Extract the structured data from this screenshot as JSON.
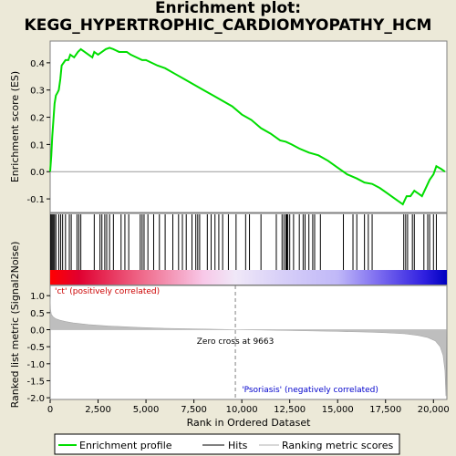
{
  "title_line1": "Enrichment plot:",
  "title_line2": "KEGG_HYPERTROPHIC_CARDIOMYOPATHY_HCM",
  "colors": {
    "background": "#ECE9D8",
    "es_line": "#00DD00",
    "hits": "#000000",
    "metric_fill": "#BEBEBE",
    "zero_cross_line": "#808080",
    "pos_label": "#CC0000",
    "neg_label": "#0000CC"
  },
  "chart_data": [
    {
      "type": "line",
      "name": "enrichment-profile",
      "ylabel": "Enrichment score (ES)",
      "ylim": [
        -0.15,
        0.48
      ],
      "yticks": [
        -0.1,
        0.0,
        0.1,
        0.2,
        0.3,
        0.4
      ],
      "ytick_labels": [
        "-0.1",
        "0.0",
        "0.1",
        "0.2",
        "0.3",
        "0.4"
      ],
      "xlim": [
        0,
        20700
      ],
      "points": [
        [
          0,
          0.0
        ],
        [
          60,
          0.06
        ],
        [
          110,
          0.13
        ],
        [
          170,
          0.19
        ],
        [
          230,
          0.25
        ],
        [
          300,
          0.28
        ],
        [
          380,
          0.29
        ],
        [
          450,
          0.3
        ],
        [
          530,
          0.34
        ],
        [
          600,
          0.39
        ],
        [
          700,
          0.4
        ],
        [
          800,
          0.41
        ],
        [
          950,
          0.41
        ],
        [
          1050,
          0.43
        ],
        [
          1250,
          0.42
        ],
        [
          1450,
          0.44
        ],
        [
          1600,
          0.45
        ],
        [
          1800,
          0.44
        ],
        [
          2000,
          0.43
        ],
        [
          2200,
          0.42
        ],
        [
          2300,
          0.44
        ],
        [
          2500,
          0.43
        ],
        [
          2700,
          0.44
        ],
        [
          2900,
          0.45
        ],
        [
          3100,
          0.455
        ],
        [
          3300,
          0.45
        ],
        [
          3600,
          0.44
        ],
        [
          3800,
          0.44
        ],
        [
          4000,
          0.44
        ],
        [
          4200,
          0.43
        ],
        [
          4500,
          0.42
        ],
        [
          4800,
          0.41
        ],
        [
          5000,
          0.41
        ],
        [
          5300,
          0.4
        ],
        [
          5600,
          0.39
        ],
        [
          6000,
          0.38
        ],
        [
          6500,
          0.36
        ],
        [
          7000,
          0.34
        ],
        [
          7500,
          0.32
        ],
        [
          8000,
          0.3
        ],
        [
          8500,
          0.28
        ],
        [
          9000,
          0.26
        ],
        [
          9500,
          0.24
        ],
        [
          10000,
          0.21
        ],
        [
          10500,
          0.19
        ],
        [
          11000,
          0.16
        ],
        [
          11500,
          0.14
        ],
        [
          12000,
          0.115
        ],
        [
          12300,
          0.11
        ],
        [
          12600,
          0.1
        ],
        [
          13000,
          0.085
        ],
        [
          13500,
          0.07
        ],
        [
          14000,
          0.06
        ],
        [
          14500,
          0.04
        ],
        [
          15000,
          0.015
        ],
        [
          15500,
          -0.01
        ],
        [
          16000,
          -0.025
        ],
        [
          16400,
          -0.04
        ],
        [
          16800,
          -0.045
        ],
        [
          17200,
          -0.06
        ],
        [
          17600,
          -0.08
        ],
        [
          18000,
          -0.1
        ],
        [
          18400,
          -0.12
        ],
        [
          18600,
          -0.09
        ],
        [
          18800,
          -0.09
        ],
        [
          19000,
          -0.07
        ],
        [
          19200,
          -0.08
        ],
        [
          19400,
          -0.09
        ],
        [
          19600,
          -0.06
        ],
        [
          19800,
          -0.03
        ],
        [
          20000,
          -0.01
        ],
        [
          20150,
          0.02
        ],
        [
          20400,
          0.01
        ],
        [
          20600,
          0.0
        ]
      ]
    },
    {
      "type": "scatter",
      "name": "hits",
      "hit_ranks": [
        30,
        80,
        130,
        180,
        230,
        300,
        450,
        550,
        650,
        800,
        1000,
        1100,
        1400,
        1500,
        1600,
        2300,
        2600,
        2700,
        2850,
        2950,
        3100,
        3300,
        3700,
        3900,
        4100,
        4700,
        4800,
        4900,
        5100,
        5400,
        5700,
        6000,
        6400,
        6700,
        6900,
        7100,
        7400,
        7600,
        7700,
        7800,
        8200,
        8400,
        8600,
        8800,
        9000,
        9300,
        9700,
        10200,
        10400,
        11000,
        11800,
        12100,
        12200,
        12300,
        12350,
        12400,
        12500,
        12700,
        13000,
        13200,
        13300,
        13500,
        13700,
        13800,
        14100,
        15300,
        15800,
        16000,
        16400,
        16600,
        16800,
        18450,
        18550,
        18650,
        18900,
        19000,
        19500,
        19700,
        19800,
        20000,
        20150
      ]
    },
    {
      "type": "heatmap",
      "name": "rank-color-bar",
      "stops": [
        {
          "rank": 0,
          "color": "#FF0000"
        },
        {
          "rank": 1500,
          "color": "#E00030"
        },
        {
          "rank": 5000,
          "color": "#F07090"
        },
        {
          "rank": 8000,
          "color": "#F8C8E8"
        },
        {
          "rank": 9663,
          "color": "#F0E8F8"
        },
        {
          "rank": 12000,
          "color": "#D8D0F8"
        },
        {
          "rank": 15000,
          "color": "#C0B8F8"
        },
        {
          "rank": 17000,
          "color": "#8070F0"
        },
        {
          "rank": 19500,
          "color": "#3020E0"
        },
        {
          "rank": 20700,
          "color": "#0000C0"
        }
      ]
    },
    {
      "type": "area",
      "name": "ranked-list-metric",
      "ylabel": "Ranked list metric (Signal2Noise)",
      "xlabel": "Rank in Ordered Dataset",
      "xlim": [
        0,
        20700
      ],
      "ylim": [
        -2.05,
        1.3
      ],
      "yticks": [
        -2.0,
        -1.5,
        -1.0,
        -0.5,
        0.0,
        0.5,
        1.0
      ],
      "ytick_labels": [
        "-2.0",
        "-1.5",
        "-1.0",
        "-0.5",
        "0.0",
        "0.5",
        "1.0"
      ],
      "xticks": [
        0,
        2500,
        5000,
        7500,
        10000,
        12500,
        15000,
        17500,
        20000
      ],
      "xtick_labels": [
        "0",
        "2,500",
        "5,000",
        "7,500",
        "10,000",
        "12,500",
        "15,000",
        "17,500",
        "20,000"
      ],
      "points": [
        [
          0,
          0.95
        ],
        [
          20,
          0.6
        ],
        [
          60,
          0.45
        ],
        [
          150,
          0.38
        ],
        [
          300,
          0.32
        ],
        [
          500,
          0.28
        ],
        [
          800,
          0.24
        ],
        [
          1200,
          0.2
        ],
        [
          2000,
          0.15
        ],
        [
          3000,
          0.11
        ],
        [
          4500,
          0.07
        ],
        [
          6000,
          0.04
        ],
        [
          8000,
          0.02
        ],
        [
          9663,
          0.0
        ],
        [
          11000,
          -0.01
        ],
        [
          13000,
          -0.03
        ],
        [
          15000,
          -0.05
        ],
        [
          16500,
          -0.07
        ],
        [
          17500,
          -0.09
        ],
        [
          18500,
          -0.12
        ],
        [
          19200,
          -0.17
        ],
        [
          19700,
          -0.23
        ],
        [
          20100,
          -0.33
        ],
        [
          20350,
          -0.5
        ],
        [
          20500,
          -0.75
        ],
        [
          20600,
          -1.2
        ],
        [
          20650,
          -1.95
        ],
        [
          20680,
          0.0
        ]
      ],
      "zero_cross_rank": 9663,
      "zero_cross_label": "Zero cross at 9663",
      "pos_label": "'ct' (positively correlated)",
      "neg_label": "'Psoriasis' (negatively correlated)"
    }
  ],
  "legend": {
    "items": [
      {
        "label": "Enrichment profile"
      },
      {
        "label": "Hits"
      },
      {
        "label": "Ranking metric scores"
      }
    ]
  }
}
